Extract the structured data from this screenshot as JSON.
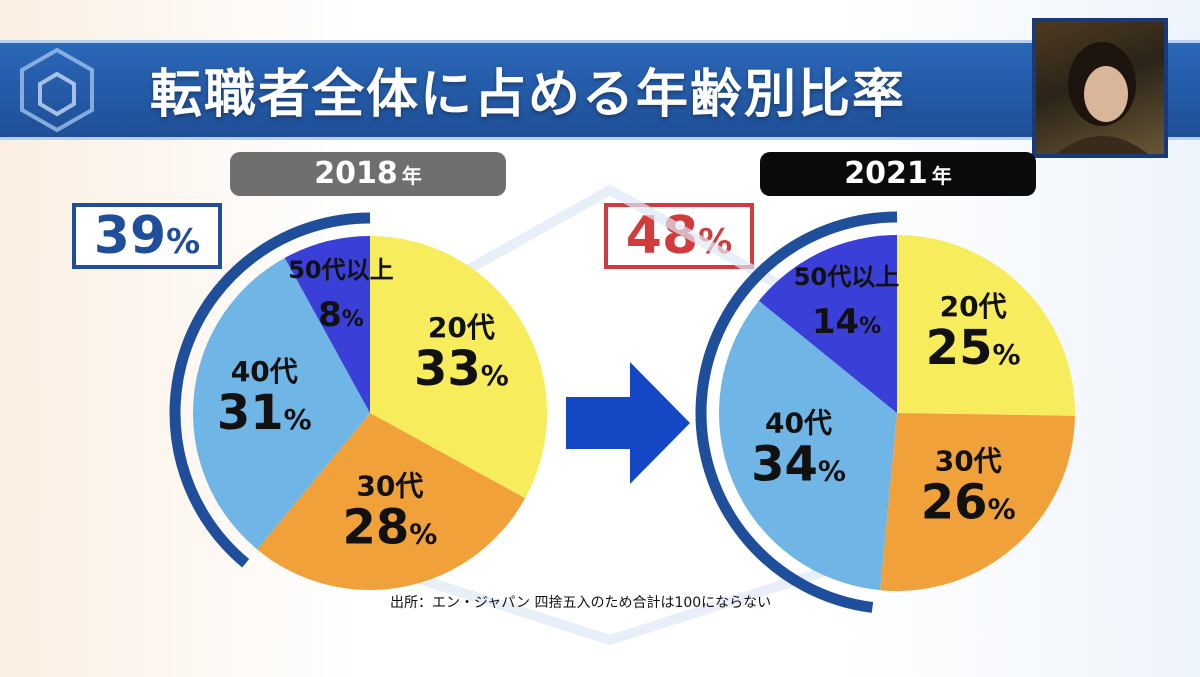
{
  "title": "転職者全体に占める年齢別比率",
  "footnote": "出所：エン・ジャパン 四捨五入のため合計は100にならない",
  "colors": {
    "title_bar": "#2360b0",
    "tab_2018": "#6f6f6f",
    "tab_2021": "#0a0a0a",
    "box_2018": "#1f4f9a",
    "box_2021": "#d23b3b",
    "arc": "#1f4f9a",
    "arrow": "#1447c4",
    "slice_20s": "#f7ec5c",
    "slice_30s": "#f0a13a",
    "slice_40s": "#6fb5e6",
    "slice_50s": "#3a3fd8"
  },
  "chart_data": [
    {
      "type": "pie",
      "year_label": "2018",
      "year_suffix": "年",
      "highlight_value": "39",
      "highlight_unit": "%",
      "slices": [
        {
          "label": "20代",
          "value": 33
        },
        {
          "label": "30代",
          "value": 28
        },
        {
          "label": "40代",
          "value": 31
        },
        {
          "label": "50代以上",
          "value": 8
        }
      ]
    },
    {
      "type": "pie",
      "year_label": "2021",
      "year_suffix": "年",
      "highlight_value": "48",
      "highlight_unit": "%",
      "slices": [
        {
          "label": "20代",
          "value": 25
        },
        {
          "label": "30代",
          "value": 26
        },
        {
          "label": "40代",
          "value": 34
        },
        {
          "label": "50代以上",
          "value": 14
        }
      ]
    }
  ]
}
